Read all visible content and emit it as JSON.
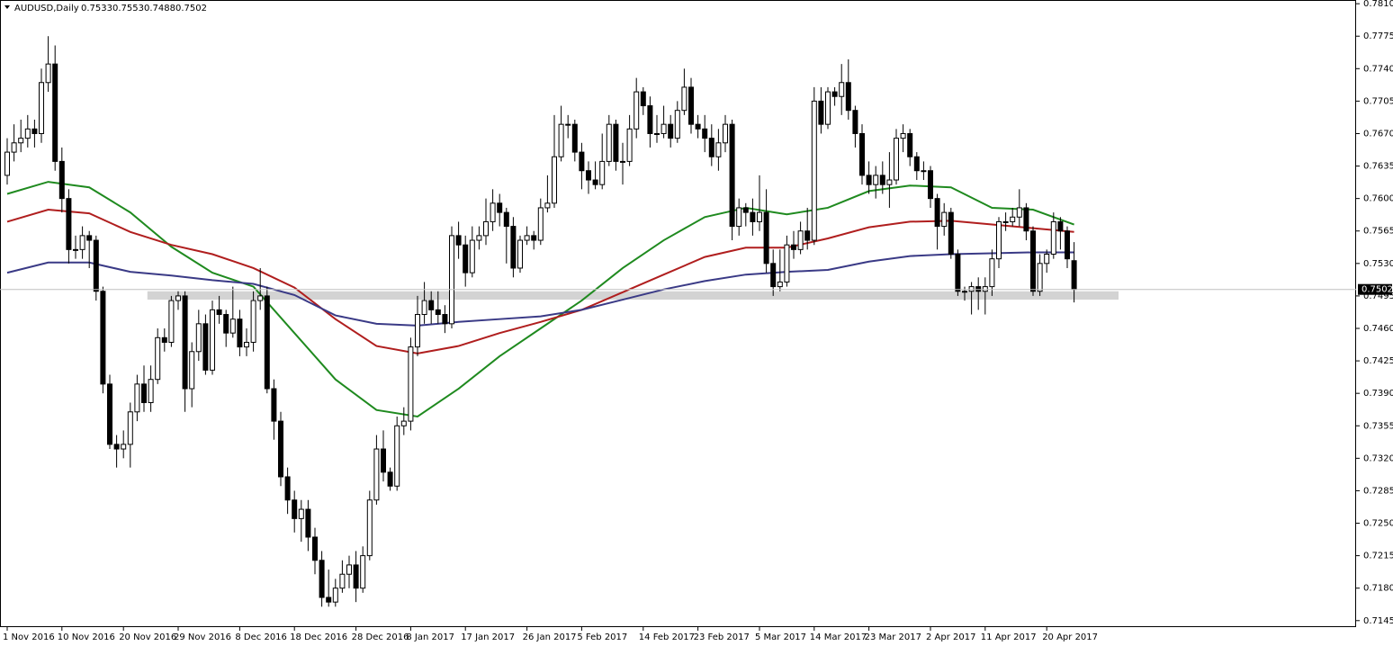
{
  "chart_data": {
    "type": "candlestick",
    "title": "AUDUSD,Daily",
    "categories": [
      "1 Nov 2016",
      null,
      null,
      null,
      null,
      null,
      null,
      null,
      "10 Nov 2016",
      null,
      null,
      null,
      null,
      null,
      null,
      null,
      null,
      "20 Nov 2016",
      null,
      null,
      null,
      null,
      null,
      null,
      null,
      "29 Nov 2016",
      null,
      null,
      null,
      null,
      null,
      null,
      null,
      null,
      "8 Dec 2016",
      null,
      null,
      null,
      null,
      null,
      null,
      null,
      "18 Dec 2016",
      null,
      null,
      null,
      null,
      null,
      null,
      null,
      null,
      "28 Dec 2016",
      null,
      null,
      null,
      null,
      null,
      null,
      null,
      "8 Jan 2017",
      null,
      null,
      null,
      null,
      null,
      null,
      null,
      "17 Jan 2017",
      null,
      null,
      null,
      null,
      null,
      null,
      null,
      null,
      "26 Jan 2017",
      null,
      null,
      null,
      null,
      null,
      null,
      null,
      "5 Feb 2017",
      null,
      null,
      null,
      null,
      null,
      null,
      null,
      null,
      "14 Feb 2017",
      null,
      null,
      null,
      null,
      null,
      null,
      null,
      "23 Feb 2017",
      null,
      null,
      null,
      null,
      null,
      null,
      null,
      null,
      "5 Mar 2017",
      null,
      null,
      null,
      null,
      null,
      null,
      null,
      "14 Mar 2017",
      null,
      null,
      null,
      null,
      null,
      null,
      null,
      "23 Mar 2017",
      null,
      null,
      null,
      null,
      null,
      null,
      null,
      null,
      "2 Apr 2017",
      null,
      null,
      null,
      null,
      null,
      null,
      null,
      "11 Apr 2017",
      null,
      null,
      null,
      null,
      null,
      null,
      null,
      null,
      "20 Apr 2017",
      null,
      null,
      null,
      null
    ],
    "open": [
      0.7625,
      0.765,
      0.766,
      0.7665,
      0.7675,
      0.767,
      0.7725,
      0.7745,
      0.764,
      0.76,
      0.7545,
      0.7545,
      0.756,
      0.7555,
      0.75,
      0.74,
      0.7335,
      0.733,
      0.7335,
      0.737,
      0.74,
      0.738,
      0.7405,
      0.745,
      0.7445,
      0.749,
      0.7495,
      0.7395,
      0.7435,
      0.7465,
      0.7415,
      0.748,
      0.7475,
      0.7455,
      0.747,
      0.744,
      0.7445,
      0.749,
      0.7495,
      0.7395,
      0.736,
      0.73,
      0.7275,
      0.7255,
      0.7265,
      0.7235,
      0.721,
      0.717,
      0.7165,
      0.718,
      0.7195,
      0.7205,
      0.718,
      0.7215,
      0.7275,
      0.733,
      0.7305,
      0.729,
      0.7355,
      0.736,
      0.744,
      0.7475,
      0.749,
      0.748,
      0.7475,
      0.7465,
      0.756,
      0.755,
      0.752,
      0.7555,
      0.756,
      0.7575,
      0.7595,
      0.7585,
      0.757,
      0.7525,
      0.7555,
      0.756,
      0.7555,
      0.759,
      0.7595,
      0.7645,
      0.768,
      0.768,
      0.765,
      0.763,
      0.762,
      0.7615,
      0.764,
      0.768,
      0.764,
      0.764,
      0.7675,
      0.7715,
      0.77,
      0.767,
      0.767,
      0.768,
      0.7665,
      0.7695,
      0.772,
      0.768,
      0.7675,
      0.7665,
      0.7645,
      0.766,
      0.768,
      0.757,
      0.759,
      0.7585,
      0.7575,
      0.7585,
      0.753,
      0.7505,
      0.751,
      0.755,
      0.7545,
      0.7565,
      0.7555,
      0.7705,
      0.768,
      0.7715,
      0.771,
      0.7725,
      0.7695,
      0.767,
      0.7625,
      0.7615,
      0.7625,
      0.7615,
      0.762,
      0.7665,
      0.767,
      0.7645,
      0.763,
      0.763,
      0.76,
      0.757,
      0.7585,
      0.754,
      0.75,
      0.75,
      0.7505,
      0.75,
      0.7505,
      0.7535,
      0.7575,
      0.7575,
      0.758,
      0.759,
      0.7565,
      0.75,
      0.753,
      0.754,
      0.7575,
      0.7565,
      0.7533
    ],
    "high": [
      0.7665,
      0.768,
      0.7685,
      0.769,
      0.7685,
      0.774,
      0.7775,
      0.7765,
      0.7655,
      0.761,
      0.756,
      0.757,
      0.7565,
      0.756,
      0.7505,
      0.741,
      0.7345,
      0.735,
      0.738,
      0.741,
      0.742,
      0.742,
      0.746,
      0.746,
      0.7495,
      0.75,
      0.75,
      0.7445,
      0.748,
      0.7475,
      0.749,
      0.7495,
      0.748,
      0.7505,
      0.748,
      0.746,
      0.75,
      0.7525,
      0.7505,
      0.7405,
      0.737,
      0.731,
      0.7285,
      0.7275,
      0.7275,
      0.7245,
      0.722,
      0.72,
      0.719,
      0.721,
      0.7215,
      0.722,
      0.7225,
      0.7285,
      0.7345,
      0.735,
      0.731,
      0.7365,
      0.7375,
      0.745,
      0.7495,
      0.751,
      0.75,
      0.75,
      0.7485,
      0.757,
      0.7575,
      0.756,
      0.757,
      0.757,
      0.76,
      0.761,
      0.7605,
      0.759,
      0.758,
      0.756,
      0.757,
      0.7565,
      0.76,
      0.7625,
      0.769,
      0.77,
      0.769,
      0.7685,
      0.766,
      0.764,
      0.764,
      0.767,
      0.769,
      0.7685,
      0.766,
      0.769,
      0.773,
      0.772,
      0.771,
      0.769,
      0.77,
      0.769,
      0.7705,
      0.774,
      0.773,
      0.769,
      0.769,
      0.768,
      0.7675,
      0.769,
      0.7685,
      0.76,
      0.7595,
      0.76,
      0.7625,
      0.761,
      0.7545,
      0.7545,
      0.756,
      0.7565,
      0.7575,
      0.759,
      0.772,
      0.772,
      0.772,
      0.772,
      0.7745,
      0.775,
      0.77,
      0.768,
      0.764,
      0.7635,
      0.764,
      0.765,
      0.7675,
      0.768,
      0.7675,
      0.765,
      0.764,
      0.7635,
      0.7605,
      0.7595,
      0.759,
      0.7545,
      0.7505,
      0.751,
      0.7515,
      0.7515,
      0.7545,
      0.758,
      0.7585,
      0.759,
      0.761,
      0.7595,
      0.757,
      0.754,
      0.7545,
      0.7585,
      0.758,
      0.757,
      0.7553
    ],
    "low": [
      0.7615,
      0.764,
      0.765,
      0.7655,
      0.7655,
      0.766,
      0.7715,
      0.763,
      0.7585,
      0.753,
      0.7535,
      0.7535,
      0.7525,
      0.749,
      0.739,
      0.733,
      0.731,
      0.732,
      0.731,
      0.736,
      0.737,
      0.737,
      0.74,
      0.7435,
      0.744,
      0.748,
      0.737,
      0.7375,
      0.7425,
      0.741,
      0.741,
      0.7465,
      0.744,
      0.745,
      0.743,
      0.743,
      0.7435,
      0.748,
      0.739,
      0.734,
      0.729,
      0.726,
      0.724,
      0.723,
      0.722,
      0.7195,
      0.716,
      0.716,
      0.716,
      0.7175,
      0.718,
      0.7165,
      0.7175,
      0.721,
      0.727,
      0.7295,
      0.7285,
      0.7285,
      0.7345,
      0.735,
      0.743,
      0.7465,
      0.7465,
      0.7465,
      0.7455,
      0.746,
      0.7535,
      0.7505,
      0.7515,
      0.7545,
      0.755,
      0.7565,
      0.757,
      0.753,
      0.7515,
      0.752,
      0.755,
      0.7545,
      0.755,
      0.7585,
      0.759,
      0.764,
      0.7665,
      0.764,
      0.761,
      0.7605,
      0.761,
      0.761,
      0.7635,
      0.763,
      0.7615,
      0.7635,
      0.7665,
      0.769,
      0.7655,
      0.766,
      0.7665,
      0.7655,
      0.766,
      0.769,
      0.767,
      0.7665,
      0.765,
      0.7635,
      0.763,
      0.765,
      0.7555,
      0.756,
      0.757,
      0.756,
      0.7565,
      0.752,
      0.7495,
      0.75,
      0.7505,
      0.7535,
      0.754,
      0.7545,
      0.755,
      0.767,
      0.7675,
      0.77,
      0.769,
      0.7685,
      0.7655,
      0.7615,
      0.7605,
      0.76,
      0.7605,
      0.759,
      0.7615,
      0.765,
      0.7635,
      0.762,
      0.762,
      0.759,
      0.7545,
      0.756,
      0.7535,
      0.7495,
      0.749,
      0.7475,
      0.748,
      0.7475,
      0.7495,
      0.7525,
      0.7565,
      0.757,
      0.757,
      0.7555,
      0.7495,
      0.7495,
      0.752,
      0.7535,
      0.7545,
      0.7525,
      0.7488
    ],
    "close": [
      0.765,
      0.766,
      0.7665,
      0.7675,
      0.767,
      0.7725,
      0.7745,
      0.764,
      0.76,
      0.7545,
      0.7545,
      0.756,
      0.7555,
      0.75,
      0.74,
      0.7335,
      0.733,
      0.7335,
      0.737,
      0.74,
      0.738,
      0.7405,
      0.745,
      0.7445,
      0.749,
      0.7495,
      0.7395,
      0.7435,
      0.7465,
      0.7415,
      0.748,
      0.7475,
      0.7455,
      0.747,
      0.744,
      0.7445,
      0.749,
      0.7495,
      0.7395,
      0.736,
      0.73,
      0.7275,
      0.7255,
      0.7265,
      0.7235,
      0.721,
      0.717,
      0.7165,
      0.718,
      0.7195,
      0.7205,
      0.718,
      0.7215,
      0.7275,
      0.733,
      0.7305,
      0.729,
      0.7355,
      0.736,
      0.744,
      0.7475,
      0.749,
      0.748,
      0.7475,
      0.7465,
      0.756,
      0.755,
      0.752,
      0.7555,
      0.756,
      0.7575,
      0.7595,
      0.7585,
      0.757,
      0.7525,
      0.7555,
      0.756,
      0.7555,
      0.759,
      0.7595,
      0.7645,
      0.768,
      0.768,
      0.765,
      0.763,
      0.762,
      0.7615,
      0.764,
      0.768,
      0.764,
      0.764,
      0.7675,
      0.7715,
      0.77,
      0.767,
      0.767,
      0.768,
      0.7665,
      0.7695,
      0.772,
      0.768,
      0.7675,
      0.7665,
      0.7645,
      0.766,
      0.768,
      0.757,
      0.759,
      0.7585,
      0.7575,
      0.7585,
      0.753,
      0.7505,
      0.751,
      0.755,
      0.7545,
      0.7565,
      0.7555,
      0.7705,
      0.768,
      0.7715,
      0.771,
      0.7725,
      0.7695,
      0.767,
      0.7625,
      0.7615,
      0.7625,
      0.7615,
      0.762,
      0.7665,
      0.767,
      0.7645,
      0.763,
      0.763,
      0.76,
      0.757,
      0.7585,
      0.754,
      0.75,
      0.75,
      0.7505,
      0.75,
      0.7505,
      0.7535,
      0.7575,
      0.7575,
      0.758,
      0.759,
      0.7565,
      0.75,
      0.753,
      0.754,
      0.7575,
      0.7565,
      0.7535,
      0.7502
    ],
    "series": [
      {
        "color": "#1f8a1f",
        "x": [
          0,
          6,
          12,
          18,
          24,
          30,
          36,
          42,
          48,
          54,
          60,
          66,
          72,
          78,
          84,
          90,
          96,
          102,
          108,
          114,
          120,
          126,
          132,
          138,
          144,
          150,
          156
        ],
        "values": [
          0.7605,
          0.7618,
          0.7612,
          0.7585,
          0.7548,
          0.752,
          0.7505,
          0.7455,
          0.7405,
          0.7372,
          0.7365,
          0.7395,
          0.743,
          0.746,
          0.749,
          0.7525,
          0.7555,
          0.758,
          0.759,
          0.7583,
          0.759,
          0.7608,
          0.7614,
          0.7612,
          0.759,
          0.7588,
          0.7572
        ]
      },
      {
        "color": "#b01e1e",
        "x": [
          0,
          6,
          12,
          18,
          24,
          30,
          36,
          42,
          48,
          54,
          60,
          66,
          72,
          78,
          84,
          90,
          96,
          102,
          108,
          114,
          120,
          126,
          132,
          138,
          144,
          150,
          156
        ],
        "values": [
          0.7575,
          0.7588,
          0.7584,
          0.7564,
          0.755,
          0.754,
          0.7525,
          0.7504,
          0.747,
          0.7441,
          0.7433,
          0.7441,
          0.7455,
          0.7467,
          0.748,
          0.7499,
          0.7518,
          0.7537,
          0.7547,
          0.7547,
          0.7557,
          0.7569,
          0.7575,
          0.7576,
          0.7572,
          0.7568,
          0.7564
        ]
      },
      {
        "color": "#3a3a86",
        "x": [
          0,
          6,
          12,
          18,
          24,
          30,
          36,
          42,
          48,
          54,
          60,
          66,
          72,
          78,
          84,
          90,
          96,
          102,
          108,
          114,
          120,
          126,
          132,
          138,
          144,
          150,
          156
        ],
        "values": [
          0.752,
          0.7531,
          0.7531,
          0.7521,
          0.7517,
          0.7512,
          0.7508,
          0.7496,
          0.7474,
          0.7465,
          0.7463,
          0.7467,
          0.747,
          0.7473,
          0.748,
          0.7491,
          0.7502,
          0.7511,
          0.7518,
          0.7521,
          0.7523,
          0.7532,
          0.7538,
          0.754,
          0.7541,
          0.7542,
          0.7542
        ]
      }
    ],
    "zones": [
      {
        "from": 0.7491,
        "to": 0.75,
        "color": "#d3d3d3"
      }
    ],
    "ylim": [
      0.7138,
      0.7814
    ],
    "yticks": [
      {
        "value": 0.781,
        "label": "0.7810"
      },
      0.7775,
      {
        "value": 0.774,
        "label": "0.7740"
      },
      0.7705,
      {
        "value": 0.767,
        "label": "0.7670"
      },
      0.7635,
      {
        "value": 0.76,
        "label": "0.7600"
      },
      0.7565,
      {
        "value": 0.753,
        "label": "0.7530"
      },
      0.7495,
      {
        "value": 0.746,
        "label": "0.7460"
      },
      0.7425,
      {
        "value": 0.739,
        "label": "0.7390"
      },
      0.7355,
      {
        "value": 0.732,
        "label": "0.7320"
      },
      0.7285,
      {
        "value": 0.725,
        "label": "0.7250"
      },
      0.7215,
      {
        "value": 0.718,
        "label": "0.7180"
      },
      0.7145
    ],
    "grid": false
  }
}
